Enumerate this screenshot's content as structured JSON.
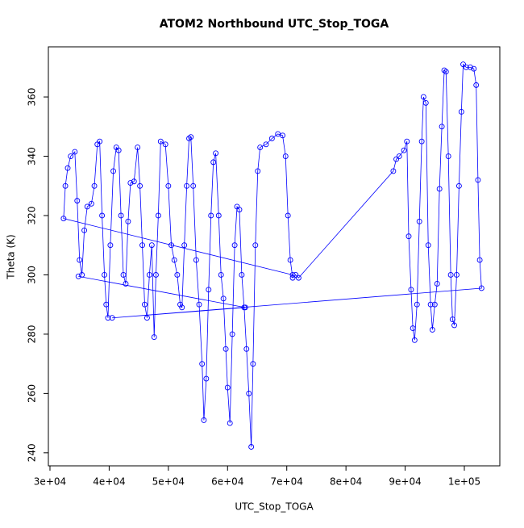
{
  "chart_data": {
    "type": "line",
    "title": "ATOM2 Northbound UTC_Stop_TOGA",
    "x_label": "UTC_Stop_TOGA",
    "y_label": "Theta (K)",
    "xlim": [
      29730,
      105990
    ],
    "ylim": [
      235.6,
      376.9
    ],
    "xticks": [
      {
        "value": 30000,
        "label": "3e+04"
      },
      {
        "value": 40000,
        "label": "4e+04"
      },
      {
        "value": 50000,
        "label": "5e+04"
      },
      {
        "value": 60000,
        "label": "6e+04"
      },
      {
        "value": 70000,
        "label": "7e+04"
      },
      {
        "value": 80000,
        "label": "8e+04"
      },
      {
        "value": 90000,
        "label": "9e+04"
      },
      {
        "value": 100000,
        "label": "1e+05"
      }
    ],
    "yticks": [
      240,
      260,
      280,
      300,
      320,
      340,
      360
    ],
    "series": [
      {
        "color": "#0000ff",
        "x": [
          71000,
          32300,
          32600,
          33000,
          33500,
          34200,
          34600,
          35000,
          35400,
          35800,
          36300,
          37000,
          37500,
          38000,
          38400,
          38800,
          39200,
          39500,
          39800,
          40200,
          40700,
          41200,
          41600,
          42000,
          42400,
          42800,
          43200,
          43600,
          44200,
          44800,
          45200,
          45600,
          46000,
          46400,
          46800,
          47200,
          47600,
          47900,
          48300,
          48700,
          49500,
          50000,
          50500,
          51000,
          51500,
          52000,
          52300,
          52700,
          53100,
          53500,
          53800,
          54200,
          54700,
          55200,
          55700,
          56000,
          56400,
          56800,
          57200,
          57600,
          58000,
          58500,
          58900,
          59300,
          59700,
          60000,
          60400,
          60800,
          61200,
          61600,
          62000,
          62400,
          62800,
          63200,
          63600,
          64000,
          64300,
          64700,
          65100,
          65500,
          66500,
          67500,
          68500,
          69300,
          69800,
          70200,
          70600,
          71000,
          71500,
          72000,
          88000,
          88500,
          89000,
          89800,
          90300,
          90600,
          91000,
          91300,
          91600,
          92000,
          92400,
          92800,
          93100,
          93500,
          93900,
          94300,
          94600,
          95000,
          95400,
          95800,
          96200,
          96600,
          96900,
          97300,
          97700,
          98000,
          98300,
          98700,
          99100,
          99500,
          99800,
          100300,
          101000,
          101600,
          102000,
          102300,
          102600,
          102900,
          40500,
          63000,
          34800
        ],
        "values": [
          300,
          319,
          330,
          336,
          340,
          341.5,
          325,
          305,
          300,
          315,
          323,
          324,
          330,
          344,
          345,
          320,
          300,
          290,
          285.5,
          310,
          335,
          343,
          342,
          320,
          300,
          297,
          318,
          331,
          331.5,
          343,
          330,
          310,
          290,
          285.5,
          300,
          310,
          279,
          300,
          320,
          345,
          344,
          330,
          310,
          305,
          300,
          290,
          289,
          310,
          330,
          346,
          346.5,
          330,
          305,
          290,
          270,
          251,
          265,
          295,
          320,
          338,
          341,
          320,
          300,
          292,
          275,
          262,
          250,
          280,
          310,
          323,
          322,
          300,
          289,
          275,
          260,
          242,
          270,
          310,
          335,
          343,
          344,
          346,
          347.5,
          347,
          340,
          320,
          305,
          299,
          300,
          299,
          335,
          339,
          340,
          342,
          345,
          313,
          295,
          282,
          278,
          290,
          318,
          345,
          360,
          358,
          310,
          290,
          281.5,
          290,
          297,
          329,
          350,
          369,
          368.5,
          340,
          300,
          285,
          283,
          300,
          330,
          355,
          371,
          370,
          370,
          369.5,
          364,
          332,
          305,
          295.5,
          285.5,
          289,
          299.5
        ]
      }
    ]
  }
}
